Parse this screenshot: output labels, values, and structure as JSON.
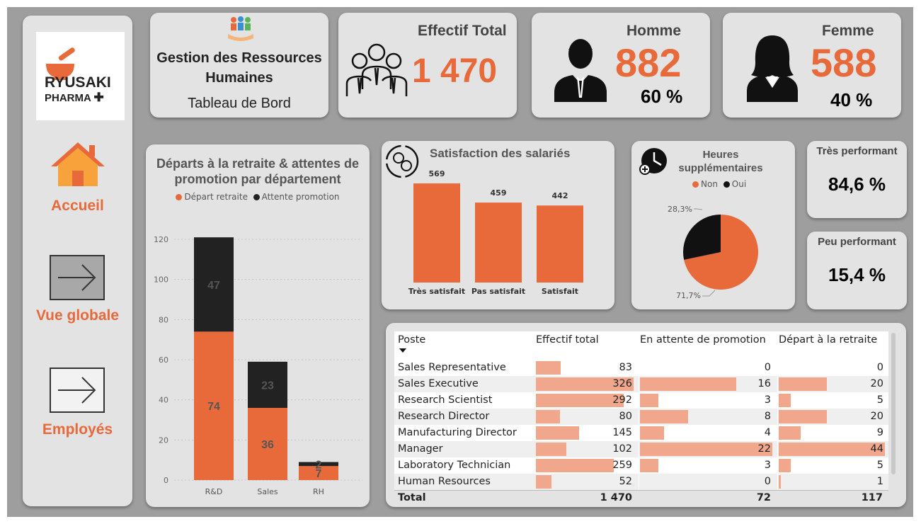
{
  "brand": {
    "line1": "RYUSAKI",
    "line2": "PHARMA"
  },
  "nav": [
    {
      "label": "Accueil",
      "icon": "house-icon"
    },
    {
      "label": "Vue globale",
      "icon": "arrow-right-icon"
    },
    {
      "label": "Employés",
      "icon": "arrow-right-icon"
    }
  ],
  "header": {
    "title": "Gestion des Ressources Humaines",
    "subtitle": "Tableau de Bord"
  },
  "kpis": {
    "total": {
      "title": "Effectif Total",
      "value": "1 470"
    },
    "homme": {
      "title": "Homme",
      "value": "882",
      "pct": "60 %"
    },
    "femme": {
      "title": "Femme",
      "value": "588",
      "pct": "40 %"
    },
    "tres_perf": {
      "title": "Très performant",
      "value": "84,6 %"
    },
    "peu_perf": {
      "title": "Peu performant",
      "value": "15,4 %"
    }
  },
  "colors": {
    "orange": "#e8693a",
    "black": "#222222",
    "bar_light": "#f0a78b"
  },
  "chart_data": [
    {
      "type": "bar",
      "stacked": true,
      "title": "Départs à la retraite & attentes de promotion par département",
      "categories": [
        "R&D",
        "Sales",
        "RH"
      ],
      "series": [
        {
          "name": "Départ retraite",
          "values": [
            74,
            36,
            7
          ],
          "color": "#e8693a"
        },
        {
          "name": "Attente promotion",
          "values": [
            47,
            23,
            2
          ],
          "color": "#222222"
        }
      ],
      "ylim": [
        0,
        120
      ],
      "yticks": [
        0,
        20,
        40,
        60,
        80,
        100,
        120
      ],
      "legend": "top",
      "grid": true
    },
    {
      "type": "bar",
      "title": "Satisfaction des salariés",
      "categories": [
        "Très satisfait",
        "Pas satisfait",
        "Satisfait"
      ],
      "values": [
        569,
        459,
        442
      ]
    },
    {
      "type": "pie",
      "title": "Heures supplémentaires",
      "labels": [
        "Non",
        "Oui"
      ],
      "values": [
        71.7,
        28.3
      ],
      "value_labels": [
        "71,7%",
        "28,3%"
      ],
      "colors": [
        "#e8693a",
        "#111111"
      ]
    }
  ],
  "table": {
    "columns": [
      "Poste",
      "Effectif total",
      "En attente de promotion",
      "Départ à la retraite"
    ],
    "rows": [
      {
        "poste": "Sales Representative",
        "effectif": 83,
        "attente": 0,
        "depart": 0
      },
      {
        "poste": "Sales Executive",
        "effectif": 326,
        "attente": 16,
        "depart": 20
      },
      {
        "poste": "Research Scientist",
        "effectif": 292,
        "attente": 3,
        "depart": 5
      },
      {
        "poste": "Research Director",
        "effectif": 80,
        "attente": 8,
        "depart": 20
      },
      {
        "poste": "Manufacturing Director",
        "effectif": 145,
        "attente": 4,
        "depart": 9
      },
      {
        "poste": "Manager",
        "effectif": 102,
        "attente": 22,
        "depart": 44
      },
      {
        "poste": "Laboratory Technician",
        "effectif": 259,
        "attente": 3,
        "depart": 5
      },
      {
        "poste": "Human Resources",
        "effectif": 52,
        "attente": 0,
        "depart": 1
      }
    ],
    "total": {
      "label": "Total",
      "effectif": "1 470",
      "attente": "72",
      "depart": "117"
    }
  }
}
